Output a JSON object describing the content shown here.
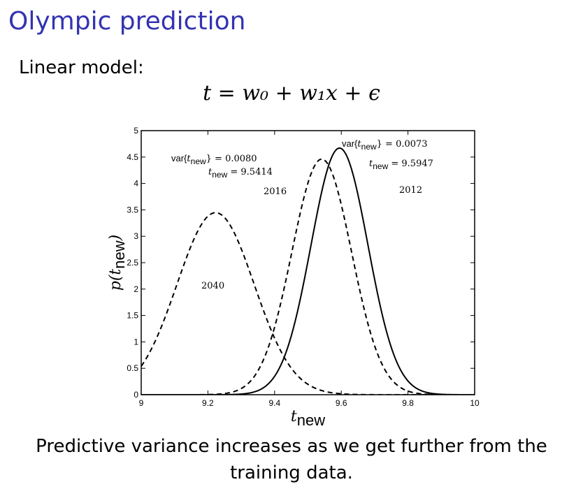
{
  "slide": {
    "title": "Olympic prediction",
    "subtitle": "Linear model:",
    "equation": "t = w₀ + w₁x + ϵ",
    "caption": "Predictive variance increases as we get further from the training data."
  },
  "chart_data": {
    "type": "line",
    "xlabel": "t_new",
    "ylabel": "p(t_new)",
    "xlim": [
      9,
      10
    ],
    "ylim": [
      0,
      5
    ],
    "xticks": [
      9,
      9.2,
      9.4,
      9.6,
      9.8,
      10
    ],
    "xtick_labels": [
      "9",
      "9.2",
      "9.4",
      "9.6",
      "9.8",
      "10"
    ],
    "yticks": [
      0,
      0.5,
      1,
      1.5,
      2,
      2.5,
      3,
      3.5,
      4,
      4.5,
      5
    ],
    "ytick_labels": [
      "0",
      "0.5",
      "1",
      "1.5",
      "2",
      "2.5",
      "3",
      "3.5",
      "4",
      "4.5",
      "5"
    ],
    "grid": false,
    "series": [
      {
        "name": "2012",
        "mean": 9.5947,
        "variance": 0.0073,
        "style": "solid"
      },
      {
        "name": "2016",
        "mean": 9.5414,
        "variance": 0.008,
        "style": "dashed"
      },
      {
        "name": "2040",
        "mean": 9.223,
        "variance": 0.0134,
        "style": "dashed"
      }
    ],
    "annotations": [
      {
        "id": "var2016",
        "text": "var{t_new} = 0.0080"
      },
      {
        "id": "mean2016",
        "text": "t_new = 9.5414"
      },
      {
        "id": "label2016",
        "text": "2016"
      },
      {
        "id": "var2012",
        "text": "var{t_new} = 0.0073"
      },
      {
        "id": "mean2012",
        "text": "t_new = 9.5947"
      },
      {
        "id": "label2012",
        "text": "2012"
      },
      {
        "id": "label2040",
        "text": "2040"
      }
    ]
  }
}
